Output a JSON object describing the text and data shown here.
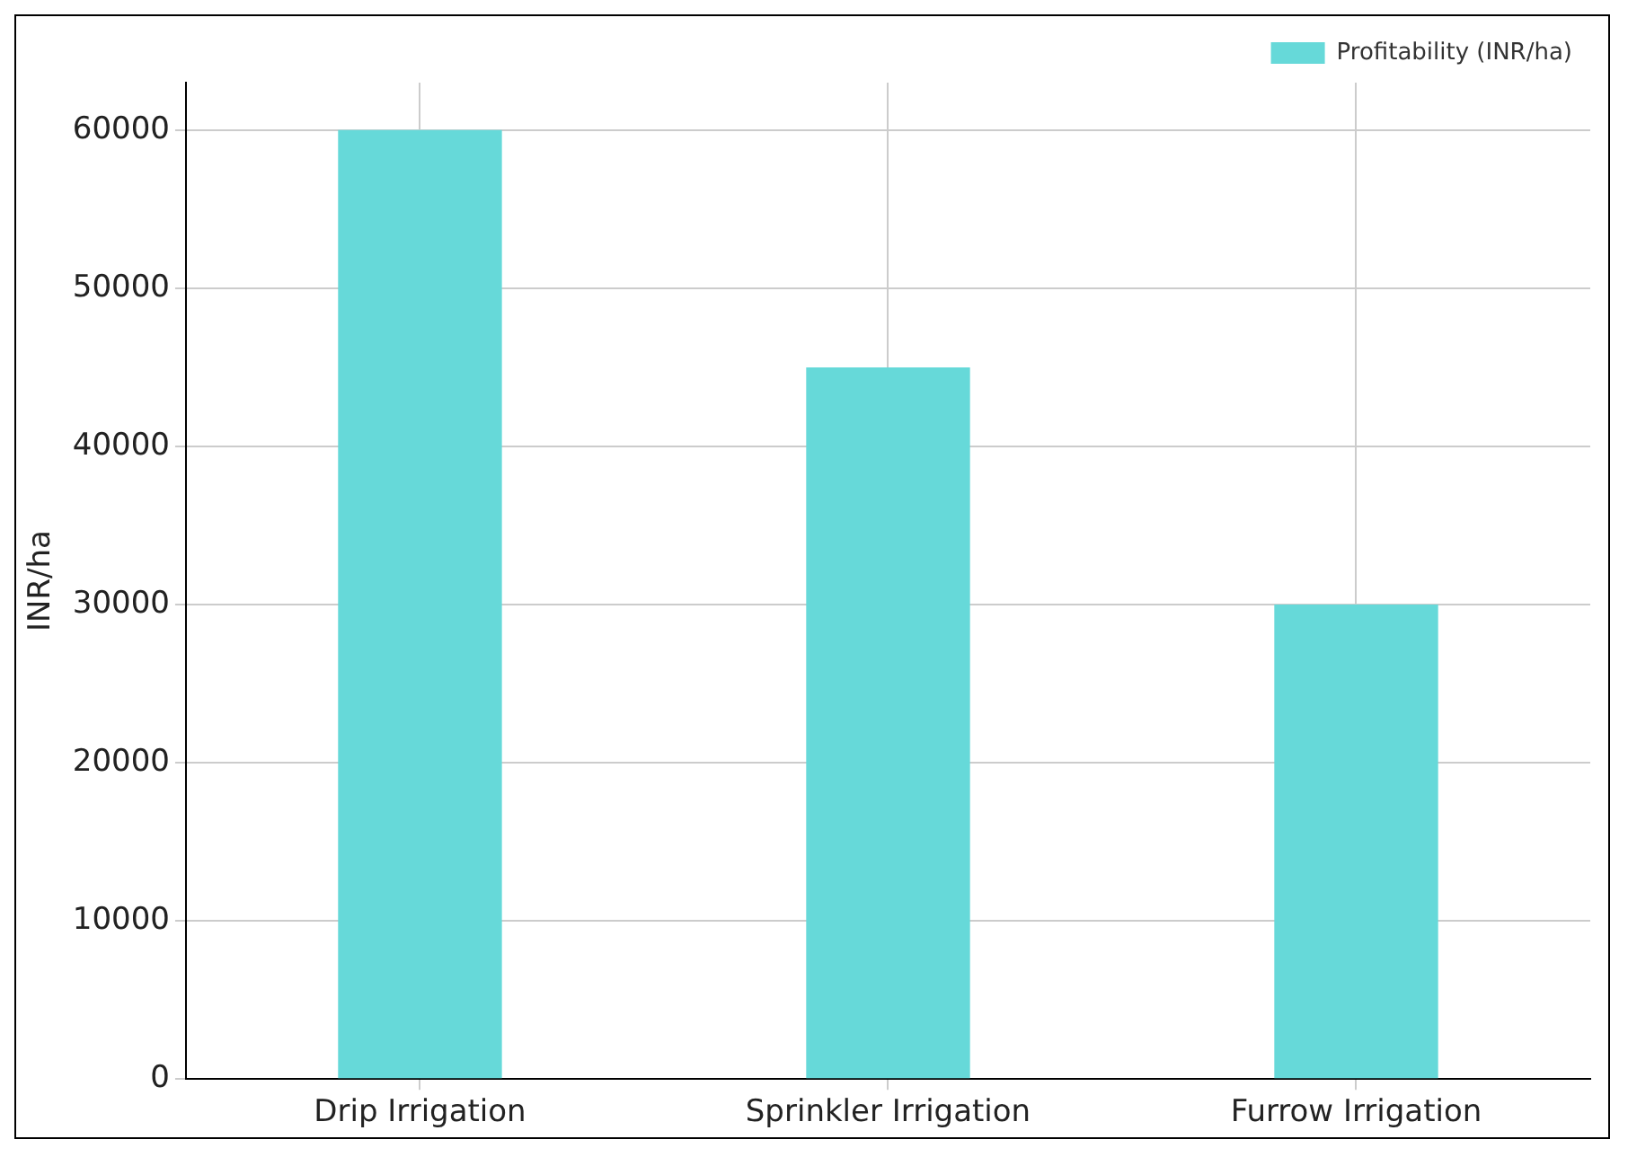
{
  "chart_data": {
    "type": "bar",
    "ylabel": "INR/ha",
    "categories": [
      "Drip Irrigation",
      "Sprinkler Irrigation",
      "Furrow Irrigation"
    ],
    "series": [
      {
        "name": "Profitability (INR/ha)",
        "color": "#66d9d9",
        "values": [
          60000,
          45000,
          30000
        ]
      }
    ],
    "ylim": [
      0,
      63000
    ],
    "yticks": [
      0,
      10000,
      20000,
      30000,
      40000,
      50000,
      60000
    ],
    "grid": true,
    "legend": "top right"
  }
}
